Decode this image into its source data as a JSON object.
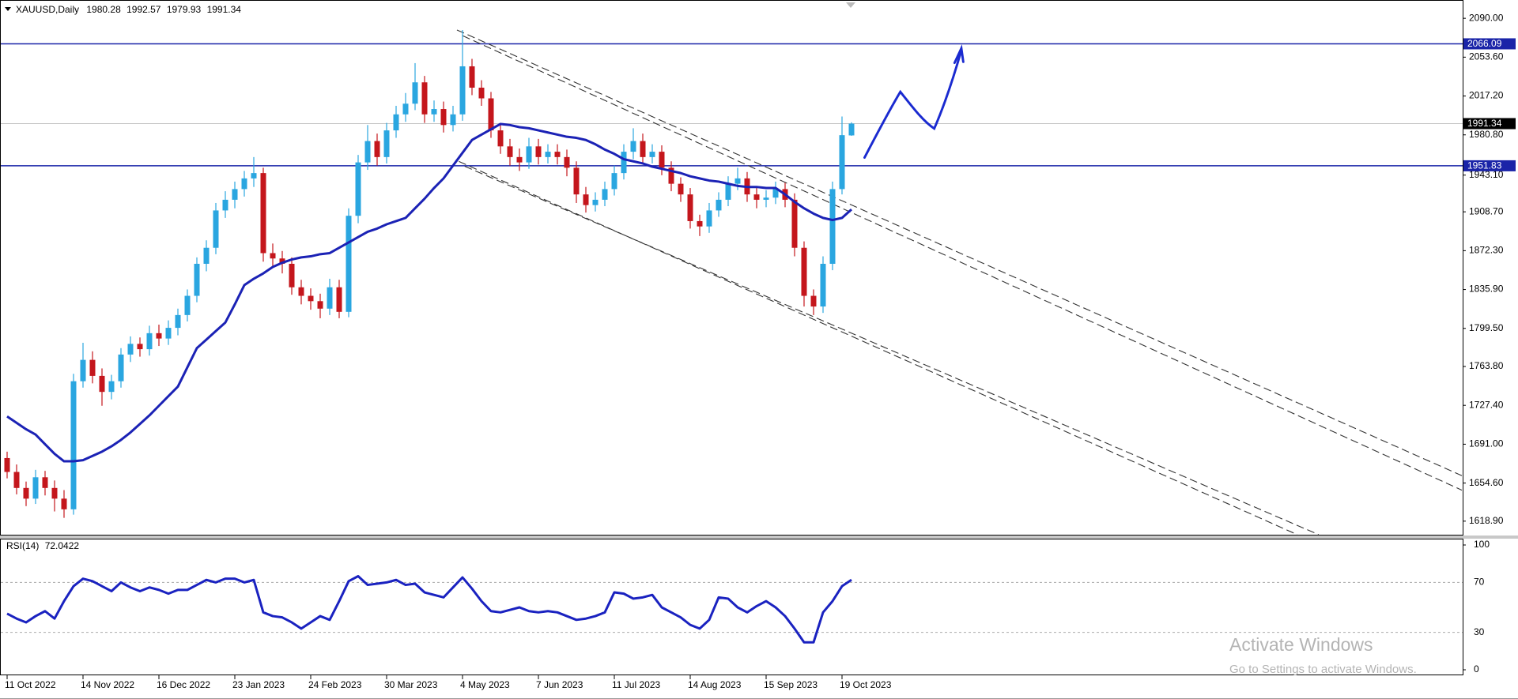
{
  "chart_data": {
    "type": "candlestick",
    "symbol": "XAUUSD,Daily",
    "categories": [
      "11 Oct 2022",
      null,
      null,
      null,
      null,
      null,
      null,
      null,
      "14 Nov 2022",
      null,
      null,
      null,
      null,
      null,
      null,
      null,
      "16 Dec 2022",
      null,
      null,
      null,
      null,
      null,
      null,
      null,
      "23 Jan 2023",
      null,
      null,
      null,
      null,
      null,
      null,
      null,
      "24 Feb 2023",
      null,
      null,
      null,
      null,
      null,
      null,
      null,
      "30 Mar 2023",
      null,
      null,
      null,
      null,
      null,
      null,
      null,
      "4 May 2023",
      null,
      null,
      null,
      null,
      null,
      null,
      null,
      "7 Jun 2023",
      null,
      null,
      null,
      null,
      null,
      null,
      null,
      "11 Jul 2023",
      null,
      null,
      null,
      null,
      null,
      null,
      null,
      "14 Aug 2023",
      null,
      null,
      null,
      null,
      null,
      null,
      null,
      "15 Sep 2023",
      null,
      null,
      null,
      null,
      null,
      null,
      null,
      "19 Oct 2023",
      null
    ],
    "ohlc": [
      [
        1678,
        1684,
        1659,
        1665
      ],
      [
        1665,
        1672,
        1644,
        1650
      ],
      [
        1650,
        1656,
        1633,
        1640
      ],
      [
        1640,
        1667,
        1635,
        1660
      ],
      [
        1660,
        1666,
        1643,
        1650
      ],
      [
        1650,
        1657,
        1628,
        1640
      ],
      [
        1640,
        1648,
        1622,
        1630
      ],
      [
        1630,
        1757,
        1625,
        1750
      ],
      [
        1750,
        1786,
        1744,
        1770
      ],
      [
        1770,
        1778,
        1748,
        1755
      ],
      [
        1755,
        1762,
        1727,
        1740
      ],
      [
        1740,
        1756,
        1733,
        1750
      ],
      [
        1750,
        1781,
        1744,
        1775
      ],
      [
        1775,
        1792,
        1768,
        1785
      ],
      [
        1785,
        1791,
        1773,
        1780
      ],
      [
        1780,
        1802,
        1774,
        1795
      ],
      [
        1795,
        1803,
        1783,
        1790
      ],
      [
        1790,
        1807,
        1784,
        1800
      ],
      [
        1800,
        1818,
        1793,
        1812
      ],
      [
        1812,
        1836,
        1806,
        1830
      ],
      [
        1830,
        1866,
        1824,
        1860
      ],
      [
        1860,
        1882,
        1853,
        1875
      ],
      [
        1875,
        1917,
        1869,
        1910
      ],
      [
        1910,
        1928,
        1903,
        1920
      ],
      [
        1920,
        1937,
        1912,
        1930
      ],
      [
        1930,
        1947,
        1923,
        1940
      ],
      [
        1940,
        1960,
        1932,
        1945
      ],
      [
        1945,
        1950,
        1862,
        1870
      ],
      [
        1870,
        1879,
        1858,
        1865
      ],
      [
        1865,
        1872,
        1851,
        1860
      ],
      [
        1860,
        1866,
        1831,
        1838
      ],
      [
        1838,
        1845,
        1822,
        1830
      ],
      [
        1830,
        1837,
        1817,
        1825
      ],
      [
        1825,
        1832,
        1809,
        1818
      ],
      [
        1818,
        1846,
        1812,
        1838
      ],
      [
        1838,
        1845,
        1809,
        1815
      ],
      [
        1815,
        1912,
        1810,
        1905
      ],
      [
        1905,
        1962,
        1898,
        1955
      ],
      [
        1955,
        1990,
        1948,
        1975
      ],
      [
        1975,
        1982,
        1952,
        1960
      ],
      [
        1960,
        1992,
        1954,
        1985
      ],
      [
        1985,
        2008,
        1978,
        2000
      ],
      [
        2000,
        2020,
        1993,
        2010
      ],
      [
        2010,
        2048,
        2004,
        2030
      ],
      [
        2030,
        2036,
        1992,
        2000
      ],
      [
        2000,
        2013,
        1993,
        2005
      ],
      [
        2005,
        2012,
        1983,
        1990
      ],
      [
        1990,
        2008,
        1984,
        2000
      ],
      [
        2000,
        2079,
        1994,
        2045
      ],
      [
        2045,
        2052,
        2018,
        2025
      ],
      [
        2025,
        2032,
        2008,
        2015
      ],
      [
        2015,
        2021,
        1978,
        1985
      ],
      [
        1985,
        1992,
        1963,
        1970
      ],
      [
        1970,
        1977,
        1952,
        1960
      ],
      [
        1960,
        1968,
        1947,
        1955
      ],
      [
        1955,
        1978,
        1949,
        1970
      ],
      [
        1970,
        1977,
        1953,
        1960
      ],
      [
        1960,
        1972,
        1954,
        1965
      ],
      [
        1965,
        1972,
        1953,
        1960
      ],
      [
        1960,
        1967,
        1942,
        1950
      ],
      [
        1950,
        1956,
        1917,
        1925
      ],
      [
        1925,
        1932,
        1908,
        1915
      ],
      [
        1915,
        1927,
        1909,
        1920
      ],
      [
        1920,
        1937,
        1914,
        1930
      ],
      [
        1930,
        1952,
        1924,
        1945
      ],
      [
        1945,
        1972,
        1939,
        1965
      ],
      [
        1965,
        1987,
        1958,
        1975
      ],
      [
        1975,
        1982,
        1953,
        1960
      ],
      [
        1960,
        1972,
        1954,
        1965
      ],
      [
        1965,
        1971,
        1943,
        1950
      ],
      [
        1950,
        1956,
        1928,
        1935
      ],
      [
        1935,
        1941,
        1918,
        1925
      ],
      [
        1925,
        1931,
        1893,
        1900
      ],
      [
        1900,
        1906,
        1886,
        1895
      ],
      [
        1895,
        1917,
        1889,
        1910
      ],
      [
        1910,
        1927,
        1904,
        1920
      ],
      [
        1920,
        1942,
        1914,
        1935
      ],
      [
        1935,
        1950,
        1929,
        1940
      ],
      [
        1940,
        1946,
        1918,
        1925
      ],
      [
        1925,
        1931,
        1912,
        1920
      ],
      [
        1920,
        1929,
        1913,
        1922
      ],
      [
        1922,
        1937,
        1916,
        1930
      ],
      [
        1930,
        1936,
        1913,
        1920
      ],
      [
        1920,
        1926,
        1867,
        1875
      ],
      [
        1875,
        1881,
        1820,
        1830
      ],
      [
        1830,
        1836,
        1812,
        1820
      ],
      [
        1820,
        1867,
        1814,
        1860
      ],
      [
        1860,
        1937,
        1854,
        1930
      ],
      [
        1930,
        1998,
        1925,
        1980.5
      ],
      [
        1980.28,
        1992.57,
        1979.93,
        1991.34
      ]
    ],
    "up_color": "#2aa6e0",
    "down_color": "#c4161c",
    "ylim": [
      1606.2,
      2102.7
    ],
    "yticks": [
      {
        "value": 2090,
        "label": "2090.00"
      },
      {
        "value": 2053.6,
        "label": "2053.60"
      },
      {
        "value": 2017.2,
        "label": "2017.20"
      },
      {
        "value": 1980.8,
        "label": "1980.80"
      },
      {
        "value": 1943.1,
        "label": "1943.10"
      },
      {
        "value": 1908.7,
        "label": "1908.70"
      },
      {
        "value": 1872.3,
        "label": "1872.30"
      },
      {
        "value": 1835.9,
        "label": "1835.90"
      },
      {
        "value": 1799.5,
        "label": "1799.50"
      },
      {
        "value": 1763.8,
        "label": "1763.80"
      },
      {
        "value": 1727.4,
        "label": "1727.40"
      },
      {
        "value": 1691,
        "label": "1691.00"
      },
      {
        "value": 1654.6,
        "label": "1654.60"
      },
      {
        "value": 1618.9,
        "label": "1618.90"
      }
    ],
    "moving_average": {
      "color": "#1b22b5",
      "values": [
        1717,
        1711,
        1705,
        1700,
        1691,
        1682,
        1675,
        1675,
        1676,
        1680,
        1684,
        1689,
        1695,
        1702,
        1710,
        1718,
        1727,
        1736,
        1745,
        1763,
        1781,
        1789,
        1797,
        1805,
        1822,
        1840,
        1846,
        1851,
        1857,
        1861,
        1864,
        1866,
        1867,
        1869,
        1870,
        1875,
        1880,
        1885,
        1890,
        1893,
        1897,
        1900,
        1903,
        1912,
        1921,
        1931,
        1940,
        1952,
        1964,
        1976,
        1981,
        1986,
        1991,
        1990,
        1988,
        1987,
        1985,
        1983,
        1981,
        1979,
        1978,
        1976,
        1972,
        1967,
        1963,
        1958,
        1956,
        1954,
        1951,
        1949,
        1947,
        1945,
        1942,
        1940,
        1938,
        1937,
        1935,
        1933,
        1932,
        1932,
        1931,
        1931,
        1925,
        1918,
        1912,
        1907,
        1903,
        1901,
        1903,
        1911
      ]
    },
    "levels": [
      {
        "value": 2066.09,
        "color": "#1a24a8"
      },
      {
        "value": 1951.83,
        "color": "#1a24a8"
      }
    ],
    "last_price_color": "#c4c4c4",
    "rsi": {
      "label": "RSI(14)",
      "color": "#1a22c0",
      "ylim": [
        0,
        100
      ],
      "yticks": [
        100,
        70,
        30,
        0
      ],
      "values": [
        45,
        41,
        38,
        43,
        47,
        41,
        55,
        67,
        73,
        71,
        67,
        63,
        70,
        66,
        63,
        66,
        64,
        61,
        64,
        64,
        68,
        72,
        70,
        73,
        73,
        70,
        72,
        46,
        43,
        42,
        38,
        33,
        38,
        43,
        40,
        55,
        71,
        75,
        68,
        69,
        70,
        72,
        68,
        69,
        62,
        60,
        58,
        66,
        74,
        65,
        55,
        47,
        46,
        48,
        50,
        47,
        46,
        47,
        46,
        43,
        40,
        41,
        43,
        46,
        62,
        61,
        57,
        58,
        60,
        50,
        46,
        42,
        36,
        33,
        40,
        58,
        57,
        50,
        46,
        51,
        55,
        50,
        43,
        33,
        22,
        22,
        46,
        55,
        67,
        72.0422
      ]
    }
  },
  "watermark": {
    "title": "Activate Windows",
    "subtitle": "Go to Settings to activate Windows."
  }
}
